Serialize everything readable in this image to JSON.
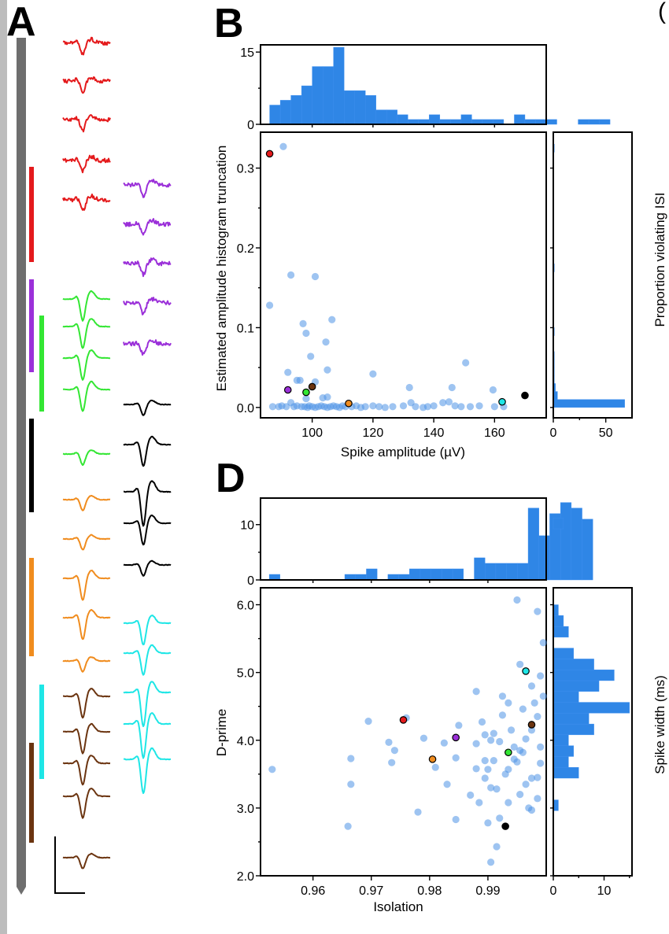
{
  "panel_labels": {
    "a": "A",
    "b": "B",
    "d": "D"
  },
  "colors": {
    "hist": "#2f86e6",
    "scatter": "#4f93e6",
    "probe": "#6e6e6e",
    "units": [
      "#e41a1c",
      "#9b30d9",
      "#33e633",
      "#000000",
      "#f08c1e",
      "#1ee6e6",
      "#6b3410"
    ]
  },
  "waveform_panel": {
    "unit_colors": [
      "red",
      "purple",
      "green",
      "black",
      "orange",
      "cyan",
      "brown"
    ],
    "column1": [
      {
        "unit": 0,
        "shape": "small-negative",
        "noisy": true
      },
      {
        "unit": 0,
        "shape": "small-negative",
        "noisy": true
      },
      {
        "unit": 0,
        "shape": "small-negative",
        "noisy": true
      },
      {
        "unit": 0,
        "shape": "small-negative",
        "noisy": true
      },
      {
        "unit": 0,
        "shape": "small-negative",
        "noisy": true
      },
      {
        "unit": 2,
        "shape": "large-negative",
        "noisy": false
      },
      {
        "unit": 2,
        "shape": "large-negative",
        "noisy": false
      },
      {
        "unit": 2,
        "shape": "large-negative",
        "noisy": false
      },
      {
        "unit": 2,
        "shape": "large-negative",
        "noisy": false
      },
      {
        "unit": 2,
        "shape": "small-negative",
        "noisy": false
      },
      {
        "unit": 4,
        "shape": "small-negative",
        "noisy": false
      },
      {
        "unit": 4,
        "shape": "small-negative",
        "noisy": false
      },
      {
        "unit": 4,
        "shape": "large-negative",
        "noisy": false
      },
      {
        "unit": 4,
        "shape": "large-negative",
        "noisy": false
      },
      {
        "unit": 4,
        "shape": "small-negative",
        "noisy": false
      },
      {
        "unit": 6,
        "shape": "large-negative",
        "noisy": false
      },
      {
        "unit": 6,
        "shape": "large-negative",
        "noisy": false
      },
      {
        "unit": 6,
        "shape": "large-negative",
        "noisy": false
      },
      {
        "unit": 6,
        "shape": "large-negative",
        "noisy": false
      },
      {
        "unit": 6,
        "shape": "small-negative",
        "noisy": false
      }
    ],
    "column2": [
      {
        "unit": 1,
        "shape": "small-negative",
        "noisy": true
      },
      {
        "unit": 1,
        "shape": "small-negative",
        "noisy": true
      },
      {
        "unit": 1,
        "shape": "small-negative",
        "noisy": true
      },
      {
        "unit": 1,
        "shape": "small-negative",
        "noisy": true
      },
      {
        "unit": 1,
        "shape": "small-negative",
        "noisy": true
      },
      {
        "unit": 3,
        "shape": "small-negative",
        "noisy": false
      },
      {
        "unit": 3,
        "shape": "large-negative",
        "noisy": false
      },
      {
        "unit": 3,
        "shape": "deep-negative",
        "noisy": false
      },
      {
        "unit": 3,
        "shape": "large-negative",
        "noisy": false
      },
      {
        "unit": 3,
        "shape": "small-negative",
        "noisy": false
      },
      {
        "unit": 5,
        "shape": "large-negative",
        "noisy": false
      },
      {
        "unit": 5,
        "shape": "large-negative",
        "noisy": false
      },
      {
        "unit": 5,
        "shape": "deep-negative",
        "noisy": false
      },
      {
        "unit": 5,
        "shape": "deep-negative",
        "noisy": false
      },
      {
        "unit": 5,
        "shape": "deep-negative",
        "noisy": false
      }
    ]
  },
  "chart_data": [
    {
      "id": "B-main",
      "type": "scatter",
      "title": "",
      "xlabel": "Spike amplitude (µV)",
      "ylabel": "Estimated amplitude histogram truncation",
      "xlim": [
        83,
        177
      ],
      "ylim": [
        -0.013,
        0.345
      ],
      "xticks": [
        100,
        120,
        140,
        160
      ],
      "xtick_labels": [
        "100",
        "120",
        "140",
        "160"
      ],
      "yticks": [
        0.0,
        0.1,
        0.2,
        0.3
      ],
      "ytick_labels": [
        "0.0",
        "0.1",
        "0.2",
        "0.3"
      ],
      "points": [
        [
          86,
          0.128
        ],
        [
          90.5,
          0.327
        ],
        [
          93,
          0.166
        ],
        [
          101,
          0.164
        ],
        [
          97,
          0.105
        ],
        [
          98,
          0.093
        ],
        [
          99.5,
          0.064
        ],
        [
          104.5,
          0.082
        ],
        [
          106.5,
          0.11
        ],
        [
          105,
          0.047
        ],
        [
          92,
          0.044
        ],
        [
          96,
          0.034
        ],
        [
          95,
          0.034
        ],
        [
          101,
          0.032
        ],
        [
          120,
          0.042
        ],
        [
          150.5,
          0.056
        ],
        [
          146,
          0.025
        ],
        [
          132,
          0.025
        ],
        [
          159.5,
          0.022
        ],
        [
          87,
          0.001
        ],
        [
          89,
          0.001
        ],
        [
          90,
          0.002
        ],
        [
          91.5,
          0.001
        ],
        [
          93,
          0.006
        ],
        [
          94,
          0.001
        ],
        [
          95,
          0.002
        ],
        [
          96.5,
          0.001
        ],
        [
          97.5,
          0.001
        ],
        [
          98.5,
          0.0
        ],
        [
          99,
          0.002
        ],
        [
          100,
          0.001
        ],
        [
          101,
          0.0
        ],
        [
          102,
          0.001
        ],
        [
          103,
          0.002
        ],
        [
          104,
          0.001
        ],
        [
          105,
          0.0
        ],
        [
          106,
          0.001
        ],
        [
          107,
          0.002
        ],
        [
          108,
          0.001
        ],
        [
          109,
          0.0
        ],
        [
          110,
          0.002
        ],
        [
          111,
          0.001
        ],
        [
          113,
          0.001
        ],
        [
          114.5,
          0.002
        ],
        [
          116,
          0.0
        ],
        [
          117.5,
          0.001
        ],
        [
          120,
          0.002
        ],
        [
          122,
          0.001
        ],
        [
          124,
          0.0
        ],
        [
          126.5,
          0.001
        ],
        [
          130,
          0.002
        ],
        [
          132.5,
          0.006
        ],
        [
          134,
          0.001
        ],
        [
          136.5,
          0.0
        ],
        [
          138,
          0.001
        ],
        [
          140,
          0.002
        ],
        [
          143,
          0.006
        ],
        [
          145,
          0.007
        ],
        [
          147,
          0.002
        ],
        [
          149,
          0.001
        ],
        [
          152,
          0.001
        ],
        [
          155,
          0.002
        ],
        [
          160,
          0.001
        ],
        [
          163,
          0.001
        ],
        [
          98,
          0.011
        ],
        [
          103.5,
          0.012
        ],
        [
          105,
          0.013
        ]
      ],
      "highlighted": [
        {
          "unit": 0,
          "x": 86,
          "y": 0.318
        },
        {
          "unit": 1,
          "x": 92,
          "y": 0.022
        },
        {
          "unit": 2,
          "x": 98,
          "y": 0.019
        },
        {
          "unit": 6,
          "x": 100,
          "y": 0.026
        },
        {
          "unit": 4,
          "x": 112,
          "y": 0.005
        },
        {
          "unit": 5,
          "x": 162.5,
          "y": 0.007
        },
        {
          "unit": 3,
          "x": 170,
          "y": 0.015
        }
      ]
    },
    {
      "id": "B-top-histogram",
      "type": "bar",
      "xlabel": "",
      "ylabel": "",
      "xlim": [
        83,
        177
      ],
      "ylim": [
        0,
        16.5
      ],
      "yticks": [
        0,
        15
      ],
      "ytick_labels": [
        "0",
        "15"
      ],
      "bin_start": 86,
      "bin_width": 3.5,
      "values": [
        4,
        5,
        6,
        8,
        12,
        12,
        16,
        7,
        7,
        6,
        3,
        3,
        2,
        1,
        1,
        2,
        1,
        1,
        2,
        1,
        1,
        1,
        0,
        2,
        1,
        1,
        1,
        0,
        0,
        1,
        1,
        1,
        0
      ]
    },
    {
      "id": "B-right-histogram",
      "type": "bar",
      "orientation": "horizontal",
      "xlabel": "",
      "ylabel": "Proportion violating ISI",
      "xlim": [
        0,
        75
      ],
      "ylim": [
        -0.013,
        0.345
      ],
      "xticks": [
        0,
        50
      ],
      "xtick_labels": [
        "0",
        "50"
      ],
      "bin_start": 0.0,
      "bin_width": 0.01,
      "values": [
        68,
        4,
        2,
        1,
        1,
        1,
        1,
        0,
        0,
        1,
        0,
        0,
        0,
        0,
        0,
        0,
        0,
        1,
        0,
        0,
        0,
        0,
        0,
        0,
        0,
        0,
        0,
        0,
        0,
        0,
        0,
        0,
        1
      ]
    },
    {
      "id": "D-main",
      "type": "scatter",
      "title": "",
      "xlabel": "Isolation",
      "ylabel": "D-prime",
      "xlim": [
        0.951,
        1.0
      ],
      "ylim": [
        2.0,
        6.25
      ],
      "xticks": [
        0.96,
        0.97,
        0.98,
        0.99
      ],
      "xtick_labels": [
        "0.96",
        "0.97",
        "0.98",
        "0.99"
      ],
      "yticks": [
        2.0,
        3.0,
        4.0,
        5.0,
        6.0
      ],
      "ytick_labels": [
        "2.0",
        "3.0",
        "4.0",
        "5.0",
        "6.0"
      ],
      "points": [
        [
          0.953,
          3.57
        ],
        [
          0.966,
          2.73
        ],
        [
          0.9665,
          3.35
        ],
        [
          0.9665,
          3.73
        ],
        [
          0.9695,
          4.28
        ],
        [
          0.973,
          3.97
        ],
        [
          0.9735,
          3.67
        ],
        [
          0.974,
          3.85
        ],
        [
          0.976,
          4.33
        ],
        [
          0.978,
          2.94
        ],
        [
          0.979,
          4.03
        ],
        [
          0.981,
          3.6
        ],
        [
          0.9825,
          3.96
        ],
        [
          0.983,
          3.35
        ],
        [
          0.9845,
          3.74
        ],
        [
          0.9845,
          2.83
        ],
        [
          0.985,
          4.22
        ],
        [
          0.987,
          3.19
        ],
        [
          0.988,
          4.72
        ],
        [
          0.9885,
          3.08
        ],
        [
          0.989,
          4.27
        ],
        [
          0.9895,
          3.44
        ],
        [
          0.99,
          3.57
        ],
        [
          0.9905,
          4.0
        ],
        [
          0.991,
          3.7
        ],
        [
          0.9915,
          3.28
        ],
        [
          0.992,
          3.98
        ],
        [
          0.9925,
          4.37
        ],
        [
          0.993,
          3.5
        ],
        [
          0.9935,
          3.08
        ],
        [
          0.994,
          4.15
        ],
        [
          0.9945,
          3.9
        ],
        [
          0.995,
          3.68
        ],
        [
          0.9955,
          3.2
        ],
        [
          0.996,
          4.46
        ],
        [
          0.9965,
          3.35
        ],
        [
          0.997,
          3.0
        ],
        [
          0.9975,
          4.15
        ],
        [
          0.998,
          4.55
        ],
        [
          0.9985,
          3.45
        ],
        [
          0.999,
          3.9
        ],
        [
          0.9995,
          4.65
        ],
        [
          0.9995,
          5.44
        ],
        [
          0.9985,
          5.9
        ],
        [
          0.995,
          6.07
        ],
        [
          0.9955,
          5.12
        ],
        [
          0.9975,
          4.8
        ],
        [
          0.999,
          4.95
        ],
        [
          0.9935,
          4.55
        ],
        [
          0.991,
          4.1
        ],
        [
          0.9895,
          3.7
        ],
        [
          0.988,
          3.95
        ],
        [
          0.9905,
          2.2
        ],
        [
          0.9915,
          2.43
        ],
        [
          0.99,
          2.78
        ],
        [
          0.992,
          2.85
        ],
        [
          0.9935,
          3.57
        ],
        [
          0.9945,
          3.72
        ],
        [
          0.996,
          3.82
        ],
        [
          0.9965,
          4.02
        ],
        [
          0.9975,
          3.44
        ],
        [
          0.9985,
          3.14
        ],
        [
          0.999,
          3.66
        ],
        [
          0.9895,
          4.08
        ],
        [
          0.9925,
          4.65
        ],
        [
          0.9955,
          3.85
        ],
        [
          0.9975,
          2.97
        ],
        [
          0.9985,
          4.35
        ],
        [
          0.9905,
          3.3
        ],
        [
          0.988,
          3.58
        ]
      ],
      "highlighted": [
        {
          "unit": 0,
          "x": 0.9755,
          "y": 4.3
        },
        {
          "unit": 1,
          "x": 0.9845,
          "y": 4.04
        },
        {
          "unit": 2,
          "x": 0.9935,
          "y": 3.82
        },
        {
          "unit": 4,
          "x": 0.9805,
          "y": 3.72
        },
        {
          "unit": 5,
          "x": 0.9965,
          "y": 5.02
        },
        {
          "unit": 6,
          "x": 0.9975,
          "y": 4.23
        },
        {
          "unit": 3,
          "x": 0.993,
          "y": 2.73
        }
      ]
    },
    {
      "id": "D-top-histogram",
      "type": "bar",
      "xlabel": "",
      "ylabel": "",
      "xlim": [
        0.951,
        1.0
      ],
      "ylim": [
        0,
        14.8
      ],
      "yticks": [
        0,
        10
      ],
      "ytick_labels": [
        "0",
        "10"
      ],
      "bin_start": 0.9525,
      "bin_width": 0.00185,
      "values": [
        1,
        0,
        0,
        0,
        0,
        0,
        0,
        1,
        1,
        2,
        0,
        1,
        1,
        2,
        2,
        2,
        2,
        2,
        0,
        4,
        3,
        3,
        3,
        3,
        13,
        8,
        12,
        14,
        13,
        11
      ]
    },
    {
      "id": "D-right-histogram",
      "type": "bar",
      "orientation": "horizontal",
      "xlabel": "",
      "ylabel": "Spike width (ms)",
      "xlim": [
        0,
        15.5
      ],
      "ylim": [
        2.0,
        6.25
      ],
      "xticks": [
        0,
        10
      ],
      "xtick_labels": [
        "0",
        "10"
      ],
      "bin_start": 2.0,
      "bin_width": 0.16,
      "values": [
        0,
        0,
        0,
        0,
        0,
        0,
        1,
        0,
        0,
        5,
        3,
        4,
        3,
        8,
        7,
        15,
        5,
        9,
        12,
        8,
        4,
        0,
        3,
        2,
        1,
        0,
        0,
        0,
        0,
        0,
        0,
        0,
        2,
        0,
        0,
        0,
        0
      ]
    }
  ]
}
